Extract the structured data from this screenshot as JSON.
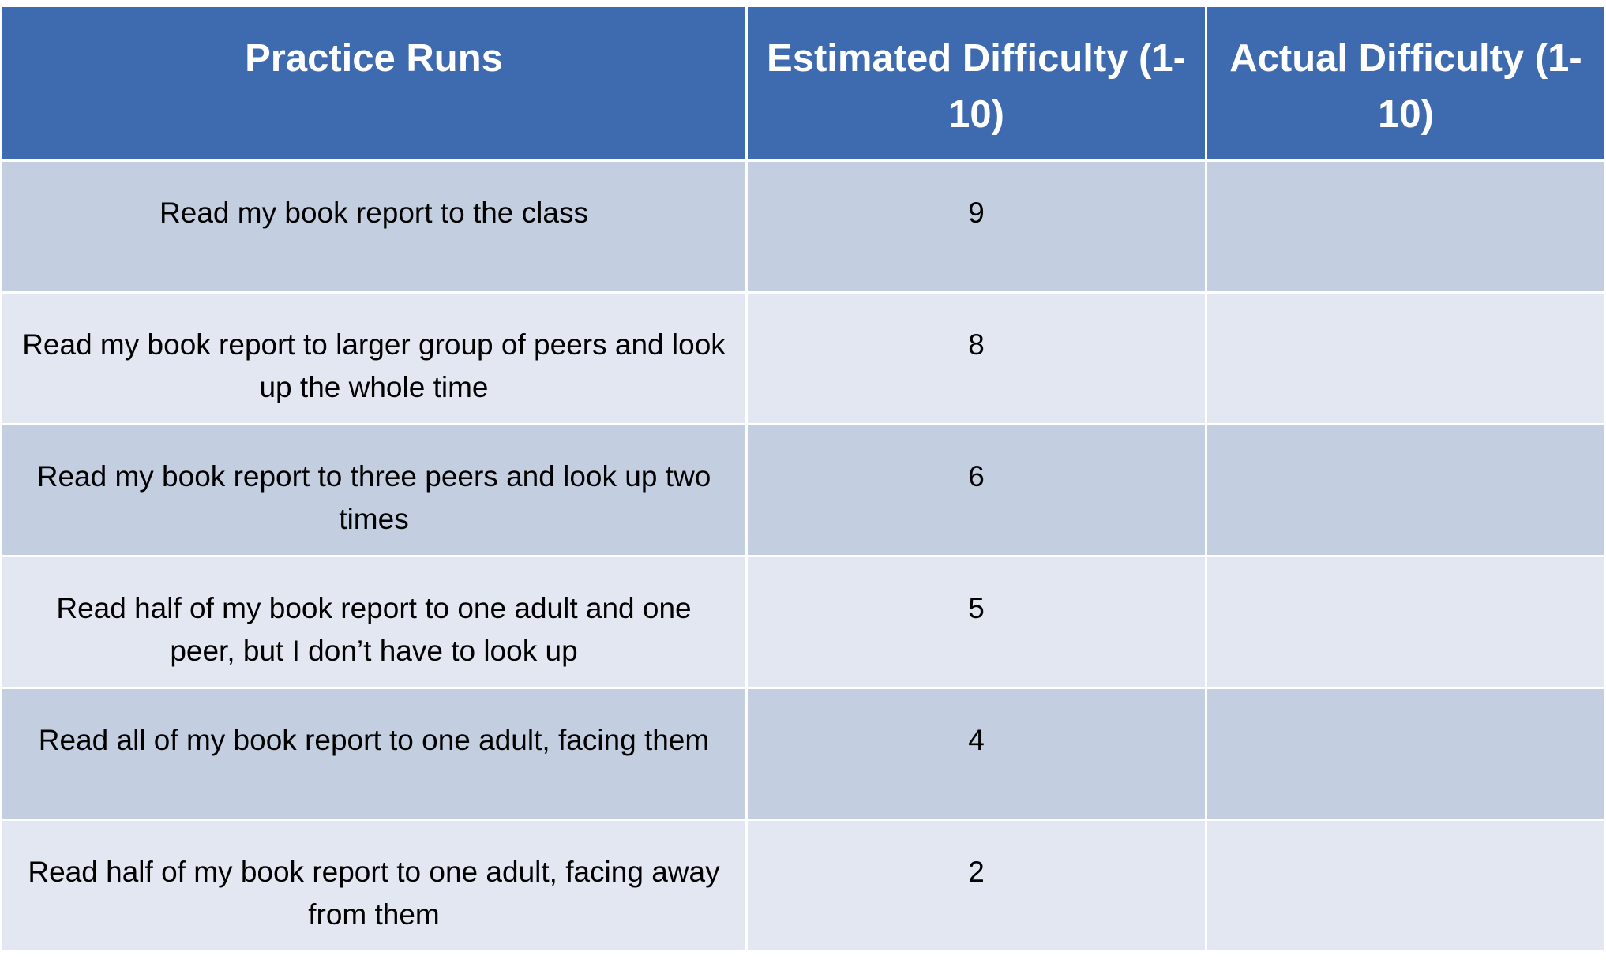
{
  "table": {
    "header": [
      "Practice Runs",
      "Estimated Difficulty (1-10)",
      "Actual Difficulty (1-10)"
    ],
    "rows": [
      {
        "run": "Read my book report to the class",
        "estimated": 9
      },
      {
        "run": "Read my book report to larger group of peers and look up the whole time",
        "estimated": 8
      },
      {
        "run": "Read my book report to three peers and look up two times",
        "estimated": 6
      },
      {
        "run": "Read half of my book report to one adult and one peer, but I don’t have to look up",
        "estimated": 5
      },
      {
        "run": "Read all of my book report to one adult, facing them",
        "estimated": 4
      },
      {
        "run": "Read half of my book report to one adult, facing away from them",
        "estimated": 2
      }
    ]
  }
}
